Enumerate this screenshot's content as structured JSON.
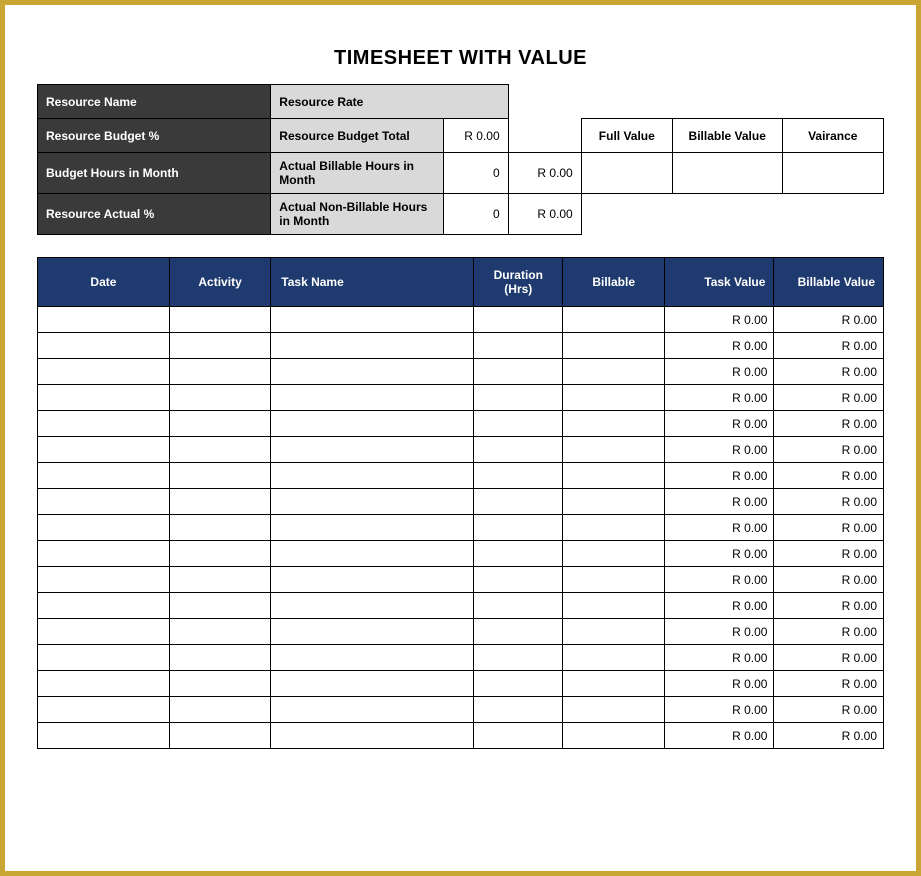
{
  "title": "TIMESHEET WITH VALUE",
  "colors": {
    "frame_border": "#c9a633",
    "dark_row": "#3a3a3a",
    "gray_cell": "#d9d9d9",
    "header_blue": "#1e3a6e",
    "white": "#ffffff",
    "black": "#000000"
  },
  "summary": {
    "rows": [
      {
        "label1": "Resource Name",
        "label2": "Resource Rate",
        "val2": "",
        "col4": "",
        "col5": "",
        "col6": "",
        "col7": "",
        "row_type": "r1"
      },
      {
        "label1": "Resource Budget %",
        "label2": "Resource Budget Total",
        "val2": "R 0.00",
        "col4": "",
        "col5": "Full Value",
        "col6": "Billable Value",
        "col7": "Vairance",
        "row_type": "r2"
      },
      {
        "label1": "Budget Hours in Month",
        "label2": "Actual Billable Hours in Month",
        "val2": "0",
        "col4": "R 0.00",
        "col5": "",
        "col6": "",
        "col7": "",
        "row_type": "r3"
      },
      {
        "label1": "Resource Actual %",
        "label2": "Actual Non-Billable Hours in Month",
        "val2": "0",
        "col4": "R 0.00",
        "col5": "",
        "col6": "",
        "col7": "",
        "row_type": "r4"
      }
    ],
    "col_widths": {
      "c1": "130",
      "c1b": "100",
      "c2": "170",
      "c3": "64",
      "c4": "72",
      "c5": "90",
      "c6": "108",
      "c7": "100"
    }
  },
  "entries": {
    "columns": [
      "Date",
      "Activity",
      "Task Name",
      "Duration (Hrs)",
      "Billable",
      "Task Value",
      "Billable Value"
    ],
    "rows": [
      {
        "date": "",
        "activity": "",
        "task": "",
        "duration": "",
        "billable": "",
        "task_value": "R 0.00",
        "billable_value": "R 0.00"
      },
      {
        "date": "",
        "activity": "",
        "task": "",
        "duration": "",
        "billable": "",
        "task_value": "R 0.00",
        "billable_value": "R 0.00"
      },
      {
        "date": "",
        "activity": "",
        "task": "",
        "duration": "",
        "billable": "",
        "task_value": "R 0.00",
        "billable_value": "R 0.00"
      },
      {
        "date": "",
        "activity": "",
        "task": "",
        "duration": "",
        "billable": "",
        "task_value": "R 0.00",
        "billable_value": "R 0.00"
      },
      {
        "date": "",
        "activity": "",
        "task": "",
        "duration": "",
        "billable": "",
        "task_value": "R 0.00",
        "billable_value": "R 0.00"
      },
      {
        "date": "",
        "activity": "",
        "task": "",
        "duration": "",
        "billable": "",
        "task_value": "R 0.00",
        "billable_value": "R 0.00"
      },
      {
        "date": "",
        "activity": "",
        "task": "",
        "duration": "",
        "billable": "",
        "task_value": "R 0.00",
        "billable_value": "R 0.00"
      },
      {
        "date": "",
        "activity": "",
        "task": "",
        "duration": "",
        "billable": "",
        "task_value": "R 0.00",
        "billable_value": "R 0.00"
      },
      {
        "date": "",
        "activity": "",
        "task": "",
        "duration": "",
        "billable": "",
        "task_value": "R 0.00",
        "billable_value": "R 0.00"
      },
      {
        "date": "",
        "activity": "",
        "task": "",
        "duration": "",
        "billable": "",
        "task_value": "R 0.00",
        "billable_value": "R 0.00"
      },
      {
        "date": "",
        "activity": "",
        "task": "",
        "duration": "",
        "billable": "",
        "task_value": "R 0.00",
        "billable_value": "R 0.00"
      },
      {
        "date": "",
        "activity": "",
        "task": "",
        "duration": "",
        "billable": "",
        "task_value": "R 0.00",
        "billable_value": "R 0.00"
      },
      {
        "date": "",
        "activity": "",
        "task": "",
        "duration": "",
        "billable": "",
        "task_value": "R 0.00",
        "billable_value": "R 0.00"
      },
      {
        "date": "",
        "activity": "",
        "task": "",
        "duration": "",
        "billable": "",
        "task_value": "R 0.00",
        "billable_value": "R 0.00"
      },
      {
        "date": "",
        "activity": "",
        "task": "",
        "duration": "",
        "billable": "",
        "task_value": "R 0.00",
        "billable_value": "R 0.00"
      },
      {
        "date": "",
        "activity": "",
        "task": "",
        "duration": "",
        "billable": "",
        "task_value": "R 0.00",
        "billable_value": "R 0.00"
      },
      {
        "date": "",
        "activity": "",
        "task": "",
        "duration": "",
        "billable": "",
        "task_value": "R 0.00",
        "billable_value": "R 0.00"
      }
    ]
  }
}
